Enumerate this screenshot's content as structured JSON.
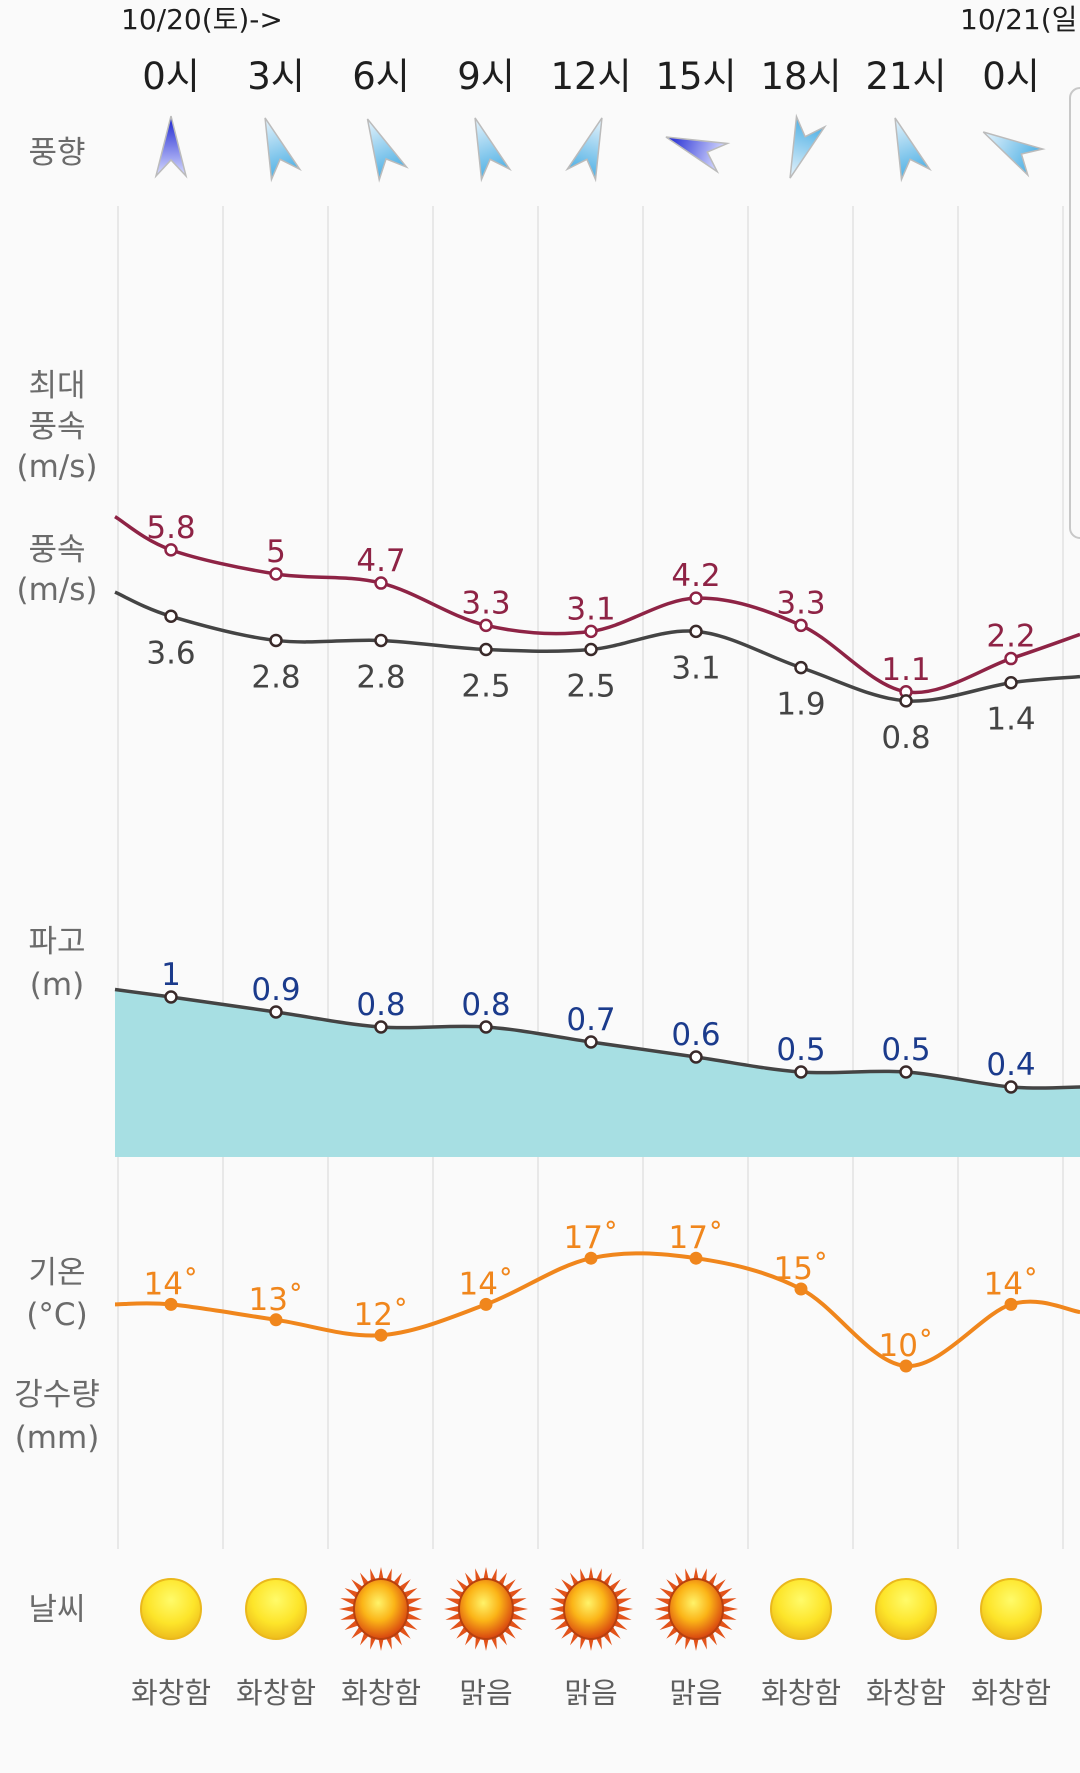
{
  "header": {
    "dates": [
      "10/20(토)->",
      "10/21(일"
    ],
    "hours": [
      "0시",
      "3시",
      "6시",
      "9시",
      "12시",
      "15시",
      "18시",
      "21시",
      "0시"
    ]
  },
  "labels": {
    "wind_dir": "풍향",
    "max_wind": [
      "최대",
      "풍속",
      "(m/s)"
    ],
    "wind": [
      "풍속",
      "(m/s)"
    ],
    "wave": [
      "파고",
      "(m)"
    ],
    "temp": [
      "기온",
      "(°C)"
    ],
    "rain": [
      "강수량",
      "(mm)"
    ],
    "weather": "날씨"
  },
  "wind_direction": {
    "degrees": [
      180,
      160,
      155,
      160,
      200,
      110,
      20,
      160,
      120
    ],
    "strong": [
      true,
      false,
      false,
      false,
      false,
      true,
      false,
      false,
      false
    ],
    "colors": {
      "strong": "#2a35d8",
      "normal": "#5cb6e6"
    }
  },
  "chart_data": [
    {
      "type": "line",
      "name": "max_wind",
      "unit": "m/s",
      "categories": [
        "0시",
        "3시",
        "6시",
        "9시",
        "12시",
        "15시",
        "18시",
        "21시",
        "0시"
      ],
      "values": [
        5.8,
        5,
        4.7,
        3.3,
        3.1,
        4.2,
        3.3,
        1.1,
        2.2
      ],
      "labels": [
        "5.8",
        "5",
        "4.7",
        "3.3",
        "3.1",
        "4.2",
        "3.3",
        "1.1",
        "2.2"
      ],
      "edge_values": [
        6.9,
        3.0
      ],
      "color": "#8e2345"
    },
    {
      "type": "line",
      "name": "wind",
      "unit": "m/s",
      "categories": [
        "0시",
        "3시",
        "6시",
        "9시",
        "12시",
        "15시",
        "18시",
        "21시",
        "0시"
      ],
      "values": [
        3.6,
        2.8,
        2.8,
        2.5,
        2.5,
        3.1,
        1.9,
        0.8,
        1.4
      ],
      "labels": [
        "3.6",
        "2.8",
        "2.8",
        "2.5",
        "2.5",
        "3.1",
        "1.9",
        "0.8",
        "1.4"
      ],
      "edge_values": [
        4.4,
        1.6
      ],
      "color": "#444444"
    },
    {
      "type": "area",
      "name": "wave",
      "unit": "m",
      "categories": [
        "0시",
        "3시",
        "6시",
        "9시",
        "12시",
        "15시",
        "18시",
        "21시",
        "0시"
      ],
      "values": [
        1,
        0.9,
        0.8,
        0.8,
        0.7,
        0.6,
        0.5,
        0.5,
        0.4
      ],
      "labels": [
        "1",
        "0.9",
        "0.8",
        "0.8",
        "0.7",
        "0.6",
        "0.5",
        "0.5",
        "0.4"
      ],
      "edge_values": [
        1.05,
        0.4
      ],
      "color": "#444444",
      "label_color": "#1b3b8c",
      "fill": "#a7dfe3"
    },
    {
      "type": "line",
      "name": "temperature",
      "unit": "°C",
      "categories": [
        "0시",
        "3시",
        "6시",
        "9시",
        "12시",
        "15시",
        "18시",
        "21시",
        "0시"
      ],
      "values": [
        14,
        13,
        12,
        14,
        17,
        17,
        15,
        10,
        14
      ],
      "labels": [
        "14˚",
        "13˚",
        "12˚",
        "14˚",
        "17˚",
        "17˚",
        "15˚",
        "10˚",
        "14˚"
      ],
      "edge_values": [
        14,
        13.5
      ],
      "color": "#f0861c"
    }
  ],
  "weather": {
    "icons": [
      "clear-night",
      "clear-night",
      "sun",
      "sun",
      "sun",
      "sun",
      "clear-night",
      "clear-night",
      "clear-night"
    ],
    "texts": [
      "화창함",
      "화창함",
      "화창함",
      "맑음",
      "맑음",
      "맑음",
      "화창함",
      "화창함",
      "화창함"
    ]
  }
}
